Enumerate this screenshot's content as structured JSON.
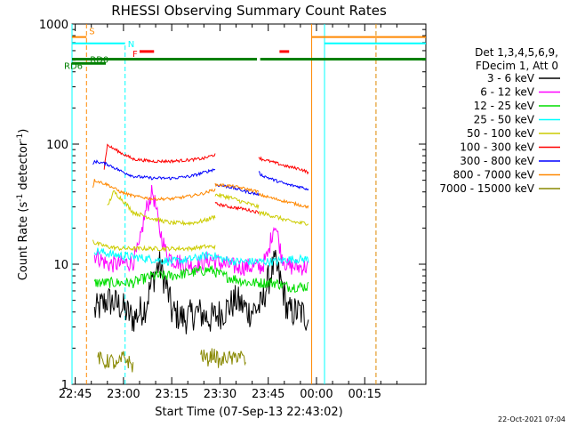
{
  "chart_data": {
    "type": "line",
    "title": "RHESSI Observing Summary Count Rates",
    "xlabel": "Start Time (07-Sep-13 22:43:02)",
    "ylabel": "Count Rate (s",
    "ylabel_sup1": "-1",
    "ylabel_mid": " detector",
    "ylabel_sup2": "-1",
    "ylabel_end": ")",
    "y_scale": "log",
    "ylim": [
      1,
      1000
    ],
    "y_ticks": [
      {
        "value": 1,
        "label": "1"
      },
      {
        "value": 10,
        "label": "10"
      },
      {
        "value": 100,
        "label": "100"
      },
      {
        "value": 1000,
        "label": "1000"
      }
    ],
    "xlim_minutes": [
      -1,
      109
    ],
    "x_ticks": [
      {
        "m": 0,
        "label": "22:45"
      },
      {
        "m": 15,
        "label": "23:00"
      },
      {
        "m": 30,
        "label": "23:15"
      },
      {
        "m": 45,
        "label": "23:30"
      },
      {
        "m": 60,
        "label": "23:45"
      },
      {
        "m": 75,
        "label": "00:00"
      },
      {
        "m": 90,
        "label": "00:15"
      }
    ],
    "legend": {
      "placement": "right",
      "header": [
        "Det 1,3,4,5,6,9,",
        "FDecim 1, Att 0"
      ],
      "entries": [
        {
          "label": "3 - 6 keV",
          "color": "#000000"
        },
        {
          "label": "6 - 12 keV",
          "color": "#ff00ff"
        },
        {
          "label": "12 - 25 keV",
          "color": "#00dd00"
        },
        {
          "label": "25 - 50 keV",
          "color": "#00ffff"
        },
        {
          "label": "50 - 100 keV",
          "color": "#cccc00"
        },
        {
          "label": "100 - 300 keV",
          "color": "#ff0000"
        },
        {
          "label": "300 - 800 keV",
          "color": "#0000ff"
        },
        {
          "label": "800 - 7000 keV",
          "color": "#ff8800"
        },
        {
          "label": "7000 - 15000 keV",
          "color": "#888800"
        }
      ]
    },
    "data_segments": [
      {
        "start": 5.5,
        "end": 43.5
      },
      {
        "start": 43.5,
        "end": 57.0
      },
      {
        "start": 57.0,
        "end": 72.5
      }
    ],
    "series": [
      {
        "name": "3 - 6 keV",
        "color": "#000000",
        "noise": 0.55,
        "lines": [
          {
            "x": [
              6,
              10,
              14,
              18,
              22,
              26,
              30,
              34,
              38,
              42,
              46,
              50,
              54,
              58,
              62,
              66,
              70,
              72.5
            ],
            "y": [
              4,
              5,
              4.5,
              3.5,
              4.5,
              10,
              4,
              3.5,
              4,
              3.5,
              4,
              5,
              4,
              4.5,
              10,
              4,
              4,
              3.5
            ]
          }
        ]
      },
      {
        "name": "6 - 12 keV",
        "color": "#ff00ff",
        "noise": 0.3,
        "lines": [
          {
            "x": [
              6,
              10,
              14,
              18,
              20,
              22,
              24,
              26,
              28,
              30,
              34,
              38,
              42,
              46,
              50,
              54,
              58,
              60,
              62,
              64,
              66,
              70,
              72.5
            ],
            "y": [
              12,
              10,
              10,
              10.5,
              14,
              28,
              40,
              20,
              13,
              11,
              10,
              10,
              11,
              10,
              9.5,
              9.5,
              9.5,
              12,
              22,
              12,
              9.5,
              9.5,
              9.5
            ]
          }
        ]
      },
      {
        "name": "12 - 25 keV",
        "color": "#00dd00",
        "noise": 0.18,
        "lines": [
          {
            "x": [
              6,
              12,
              18,
              24,
              30,
              36,
              42,
              46,
              50,
              54,
              58,
              62,
              66,
              70,
              72.5
            ],
            "y": [
              7,
              7,
              7,
              8,
              8,
              8.5,
              9,
              8,
              7.5,
              7,
              7,
              7,
              6.5,
              6.5,
              6.5
            ]
          }
        ]
      },
      {
        "name": "25 - 50 keV",
        "color": "#00ffff",
        "noise": 0.14,
        "lines": [
          {
            "x": [
              6,
              12,
              18,
              24,
              30,
              36,
              42,
              46,
              50,
              54,
              58,
              62,
              66,
              70,
              72.5
            ],
            "y": [
              13,
              12,
              11.5,
              11,
              10.5,
              11,
              12,
              11,
              10.5,
              10.5,
              10.5,
              10.5,
              11,
              11,
              11
            ]
          }
        ]
      },
      {
        "name": "50 - 100 keV",
        "color": "#cccc00",
        "noise": 0.07,
        "lines": [
          {
            "x": [
              5.5,
              6,
              10,
              14,
              18,
              24,
              30,
              36,
              40,
              43.5
            ],
            "y": [
              16,
              15,
              14,
              13.5,
              13.5,
              13.5,
              13.5,
              13.5,
              14,
              14
            ]
          },
          {
            "x": [
              10,
              12,
              18,
              24,
              30,
              36,
              40,
              43.5
            ],
            "y": [
              30,
              40,
              27,
              24,
              22,
              22,
              23,
              25
            ]
          },
          {
            "x": [
              43.5,
              48,
              52,
              57
            ],
            "y": [
              38,
              36,
              33,
              30
            ]
          },
          {
            "x": [
              57,
              62,
              66,
              70,
              72.5
            ],
            "y": [
              27,
              25,
              23,
              22,
              22
            ]
          }
        ]
      },
      {
        "name": "100 - 300 keV",
        "color": "#ff0000",
        "noise": 0.05,
        "lines": [
          {
            "x": [
              9,
              10,
              14,
              18,
              24,
              30,
              36,
              40,
              43.5
            ],
            "y": [
              62,
              98,
              85,
              75,
              72,
              72,
              74,
              76,
              82
            ]
          },
          {
            "x": [
              43.5,
              48,
              52,
              57
            ],
            "y": [
              32,
              30,
              29,
              27
            ]
          },
          {
            "x": [
              57,
              58,
              62,
              66,
              70,
              72.5
            ],
            "y": [
              78,
              75,
              70,
              65,
              62,
              58
            ]
          }
        ]
      },
      {
        "name": "300 - 800 keV",
        "color": "#0000ff",
        "noise": 0.05,
        "lines": [
          {
            "x": [
              5.5,
              6,
              10,
              14,
              18,
              24,
              30,
              36,
              40,
              43.5
            ],
            "y": [
              66,
              72,
              68,
              60,
              54,
              52,
              52,
              54,
              58,
              62
            ]
          },
          {
            "x": [
              43.5,
              48,
              52,
              57
            ],
            "y": [
              46,
              44,
              41,
              38
            ]
          },
          {
            "x": [
              57,
              58,
              62,
              66,
              70,
              72.5
            ],
            "y": [
              58,
              55,
              50,
              46,
              44,
              42
            ]
          }
        ]
      },
      {
        "name": "800 - 7000 keV",
        "color": "#ff8800",
        "noise": 0.05,
        "lines": [
          {
            "x": [
              5.5,
              6,
              10,
              14,
              18,
              24,
              30,
              36,
              40,
              43.5
            ],
            "y": [
              44,
              50,
              46,
              40,
              37,
              35,
              35,
              37,
              39,
              42
            ]
          },
          {
            "x": [
              43.5,
              48,
              52,
              57
            ],
            "y": [
              46,
              45,
              43,
              40
            ]
          },
          {
            "x": [
              57,
              62,
              66,
              70,
              72.5
            ],
            "y": [
              38,
              35,
              33,
              31,
              30
            ]
          }
        ]
      },
      {
        "name": "7000 - 15000 keV",
        "color": "#888800",
        "noise": 0.25,
        "lines": [
          {
            "x": [
              7,
              9,
              11,
              13,
              15,
              17,
              18
            ],
            "y": [
              1.7,
              1.5,
              1.6,
              1.4,
              1.7,
              1.5,
              1.4
            ]
          },
          {
            "x": [
              39,
              41,
              43,
              45,
              47,
              49,
              51,
              53
            ],
            "y": [
              1.8,
              1.6,
              1.8,
              1.5,
              1.7,
              1.6,
              1.8,
              1.5
            ]
          }
        ]
      }
    ],
    "vertical_lines": [
      {
        "m": 3.5,
        "color": "#ff8800",
        "dash": true,
        "height_value": 1000
      },
      {
        "m": 15.5,
        "color": "#00ffff",
        "dash": true,
        "height_value": 700
      },
      {
        "m": 73.5,
        "color": "#ff8800",
        "dash": false,
        "height_value": 1000
      },
      {
        "m": 77.5,
        "color": "#00ffff",
        "dash": false,
        "height_value": 1000
      },
      {
        "m": 93.5,
        "color": "#00ffff",
        "dash": true,
        "height_value": 1000
      },
      {
        "m": 93.5,
        "color": "#ff8800",
        "dash": true,
        "height_value": 1000
      },
      {
        "m": -1,
        "color": "#00ffff",
        "dash": false,
        "height_value": 1000
      }
    ],
    "flag_bars": [
      {
        "label": "S",
        "color": "#ff8800",
        "y_value": 780,
        "thick": false,
        "segments": [
          [
            -1,
            3.5
          ],
          [
            73.5,
            109
          ]
        ]
      },
      {
        "label": "N",
        "color": "#00ffff",
        "y_value": 690,
        "thick": false,
        "segments": [
          [
            -1,
            15.5
          ],
          [
            77.5,
            109
          ]
        ]
      },
      {
        "label": "F",
        "color": "#ff0000",
        "y_value": 590,
        "thick": true,
        "segments": [
          [
            20,
            24.5
          ],
          [
            63.5,
            66.5
          ]
        ]
      },
      {
        "label": "RD0",
        "color": "#008000",
        "y_value": 510,
        "thick": true,
        "segments": [
          [
            -1,
            43.5
          ],
          [
            43.5,
            56.5
          ],
          [
            57.5,
            109
          ]
        ]
      },
      {
        "label": "RD6",
        "color": "#008000",
        "y_value": 470,
        "thick": true,
        "segments": [
          [
            -1,
            9.5
          ]
        ]
      }
    ],
    "timestamp": "22-Oct-2021 07:04"
  }
}
